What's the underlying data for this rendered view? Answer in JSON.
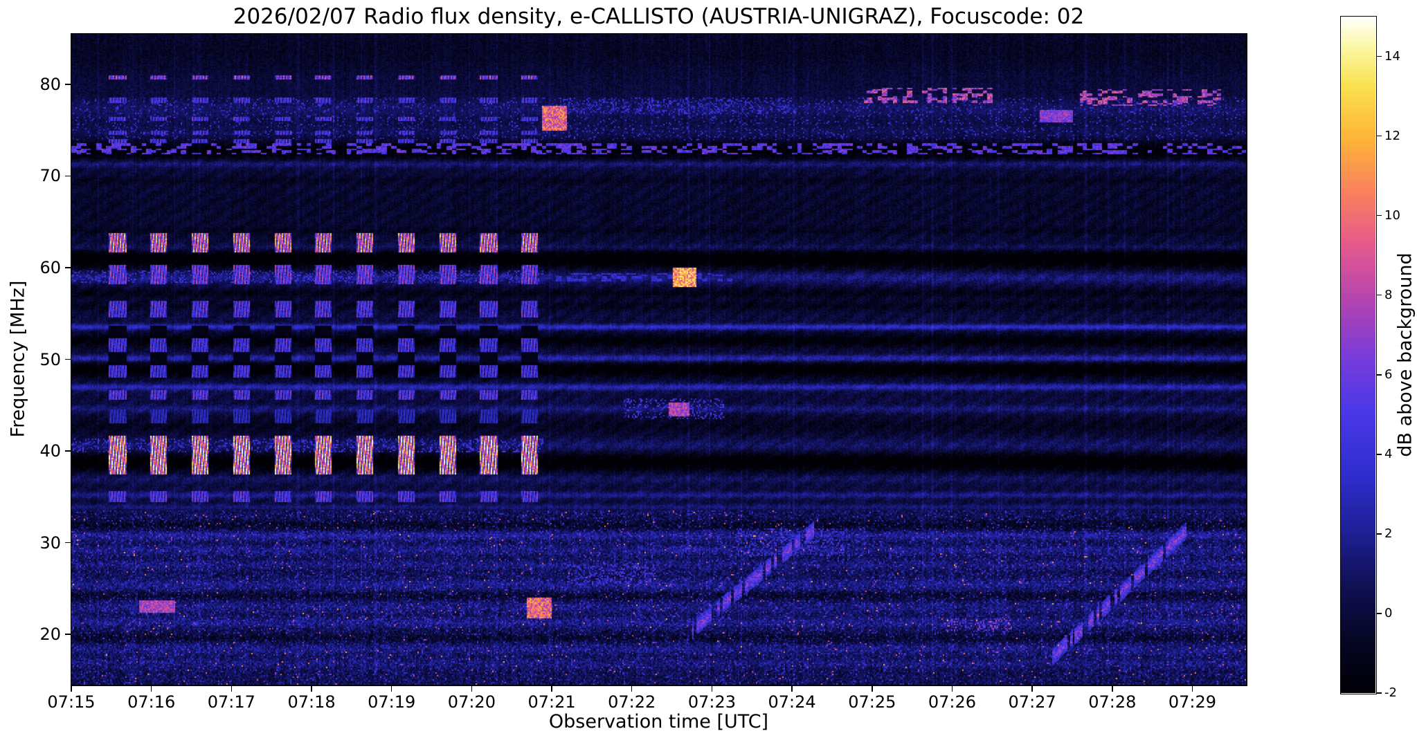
{
  "figure": {
    "title": "2026/02/07  Radio flux density, e-CALLISTO (AUSTRIA-UNIGRAZ), Focuscode: 02",
    "date": "2026/02/07",
    "instrument": "e-CALLISTO",
    "station": "AUSTRIA-UNIGRAZ",
    "focuscode": "02",
    "xlabel": "Observation time [UTC]",
    "ylabel": "Frequency [MHz]",
    "colorbar_label": "dB above background"
  },
  "chart_data": {
    "type": "heatmap",
    "title": "2026/02/07  Radio flux density, e-CALLISTO (AUSTRIA-UNIGRAZ), Focuscode: 02",
    "xlabel": "Observation time [UTC]",
    "ylabel": "Frequency [MHz]",
    "x_ticks": [
      "07:15",
      "07:16",
      "07:17",
      "07:18",
      "07:19",
      "07:20",
      "07:21",
      "07:22",
      "07:23",
      "07:24",
      "07:25",
      "07:26",
      "07:27",
      "07:28",
      "07:29"
    ],
    "x_start_utc": "07:15",
    "x_duration_minutes": 14.67,
    "y_ticks": [
      20,
      30,
      40,
      50,
      60,
      70,
      80
    ],
    "y_range_mhz": [
      14.5,
      85.5
    ],
    "grid": false,
    "colorbar": {
      "label": "dB above background",
      "ticks": [
        -2,
        0,
        2,
        4,
        6,
        8,
        10,
        12,
        14
      ],
      "vmin": -2,
      "vmax": 15,
      "position": "right"
    },
    "colormap_stops": [
      [
        0.0,
        0,
        0,
        4
      ],
      [
        0.08,
        6,
        6,
        38
      ],
      [
        0.16,
        16,
        16,
        84
      ],
      [
        0.24,
        30,
        32,
        150
      ],
      [
        0.33,
        48,
        46,
        208
      ],
      [
        0.42,
        76,
        56,
        232
      ],
      [
        0.5,
        122,
        60,
        216
      ],
      [
        0.58,
        178,
        68,
        176
      ],
      [
        0.66,
        228,
        88,
        142
      ],
      [
        0.74,
        250,
        128,
        94
      ],
      [
        0.82,
        253,
        180,
        56
      ],
      [
        0.9,
        250,
        226,
        80
      ],
      [
        0.96,
        252,
        249,
        172
      ],
      [
        1.0,
        255,
        255,
        255
      ]
    ],
    "background": {
      "base_db": 0,
      "noise_sigma_db": 1.5,
      "low_freq_noise_below_mhz": 33.5,
      "quiet_zone_mhz": [
        34,
        72
      ],
      "description": "Dark navy background near 0 dB with horizontal RFI band structure; persistent broadband noise and speckle below ~33 MHz; faint diagonal weave texture in the quiet 34-72 MHz zone after 07:21."
    },
    "spectral_bands": [
      [
        53.5,
        0.22,
        3.4
      ],
      [
        50.1,
        0.25,
        2.8
      ],
      [
        47.0,
        0.25,
        2.8
      ],
      [
        44.6,
        0.3,
        1.4
      ],
      [
        35.2,
        0.25,
        1.8
      ],
      [
        33.9,
        0.22,
        1.4
      ],
      [
        71.3,
        0.28,
        1.7
      ],
      [
        62.2,
        0.25,
        1.2
      ],
      [
        58.9,
        0.45,
        1.6
      ],
      [
        40.6,
        0.5,
        1.1
      ],
      [
        37.0,
        0.35,
        0.9
      ],
      [
        77.3,
        0.7,
        1.0
      ],
      [
        74.6,
        0.7,
        0.7
      ],
      [
        30.8,
        0.35,
        1.6
      ],
      [
        29.2,
        0.35,
        1.2
      ],
      [
        27.6,
        0.35,
        1.0
      ],
      [
        25.4,
        0.45,
        1.2
      ],
      [
        23.0,
        0.45,
        1.0
      ],
      [
        21.3,
        0.4,
        1.2
      ],
      [
        18.4,
        0.45,
        1.0
      ],
      [
        16.8,
        0.35,
        0.9
      ],
      [
        38.8,
        0.7,
        -2.6
      ],
      [
        48.9,
        0.6,
        -2.4
      ],
      [
        52.0,
        0.5,
        -2.0
      ],
      [
        55.8,
        0.4,
        -1.0
      ],
      [
        60.9,
        0.7,
        -2.6
      ],
      [
        57.2,
        0.4,
        -1.2
      ],
      [
        72.8,
        0.8,
        -2.0
      ],
      [
        66.5,
        2.5,
        -0.5
      ],
      [
        83.8,
        1.8,
        -0.7
      ],
      [
        42.8,
        0.7,
        -0.9
      ],
      [
        31.9,
        0.4,
        -1.2
      ],
      [
        24.2,
        0.35,
        -1.0
      ],
      [
        19.6,
        0.35,
        -1.0
      ],
      [
        64.0,
        0.3,
        -0.6
      ],
      [
        69.5,
        0.3,
        -0.6
      ]
    ],
    "pulse_train": {
      "description": "Regular broadband calibration-like pulses from ~07:15:35 to ~07:20:50, period ~31 s, each ~12 s wide with fine vertical striping, brightest at 37-42 MHz and 61-64 MHz (up to ~13 dB).",
      "start_min": 0.58,
      "period_min": 0.515,
      "count": 11,
      "width_min": 0.21,
      "bands": [
        [
          79.3,
          81.4,
          8.0,
          "patchy"
        ],
        [
          73.6,
          78.6,
          5.5,
          "patchy"
        ],
        [
          61.6,
          63.7,
          11.0,
          "solid"
        ],
        [
          58.2,
          60.2,
          7.0,
          "solid"
        ],
        [
          54.6,
          56.3,
          6.0,
          "solid"
        ],
        [
          48.0,
          53.6,
          5.5,
          "checker"
        ],
        [
          45.6,
          46.7,
          6.0,
          "solid"
        ],
        [
          42.9,
          44.6,
          3.5,
          "patchy"
        ],
        [
          37.4,
          41.7,
          12.5,
          "solid"
        ],
        [
          34.5,
          35.7,
          6.0,
          "solid"
        ]
      ]
    },
    "events": [
      {
        "t0": 0.0,
        "t1": 14.67,
        "f0": 72.4,
        "f1": 73.6,
        "db": 6.0,
        "type": "dashes"
      },
      {
        "t0": 0.0,
        "t1": 5.9,
        "f0": 58.3,
        "f1": 59.6,
        "db": 4.5,
        "type": "speckle"
      },
      {
        "t0": 0.0,
        "t1": 5.9,
        "f0": 39.9,
        "f1": 41.4,
        "db": 4.5,
        "type": "speckle"
      },
      {
        "t0": 0.85,
        "t1": 1.3,
        "f0": 22.3,
        "f1": 23.7,
        "db": 8.0,
        "type": "blob"
      },
      {
        "t0": 5.7,
        "t1": 6.0,
        "f0": 21.8,
        "f1": 24.0,
        "db": 10.0,
        "type": "blob"
      },
      {
        "t0": 5.88,
        "t1": 6.2,
        "f0": 75.0,
        "f1": 77.6,
        "db": 10.0,
        "type": "blob"
      },
      {
        "t0": 6.05,
        "t1": 8.25,
        "f0": 58.4,
        "f1": 59.4,
        "db": 4.0,
        "type": "dashes"
      },
      {
        "t0": 6.0,
        "t1": 9.0,
        "f0": 76.8,
        "f1": 78.5,
        "db": 4.0,
        "type": "speckle"
      },
      {
        "t0": 6.2,
        "t1": 7.3,
        "f0": 25.4,
        "f1": 27.6,
        "db": 5.0,
        "type": "speckle"
      },
      {
        "t0": 6.9,
        "t1": 8.15,
        "f0": 43.5,
        "f1": 45.8,
        "db": 5.0,
        "type": "speckle"
      },
      {
        "t0": 7.45,
        "t1": 7.72,
        "f0": 43.8,
        "f1": 45.3,
        "db": 8.0,
        "type": "blob"
      },
      {
        "t0": 7.5,
        "t1": 7.8,
        "f0": 57.9,
        "f1": 60.0,
        "db": 12.0,
        "type": "blob"
      },
      {
        "t0": 7.75,
        "t1": 9.35,
        "f0": 20.5,
        "f1": 32.0,
        "db": 7.0,
        "type": "drift"
      },
      {
        "t0": 8.3,
        "t1": 9.7,
        "f0": 28.5,
        "f1": 31.6,
        "db": 4.5,
        "type": "speckle"
      },
      {
        "t0": 9.9,
        "t1": 11.6,
        "f0": 77.9,
        "f1": 79.6,
        "db": 8.5,
        "type": "dashes"
      },
      {
        "t0": 10.9,
        "t1": 11.75,
        "f0": 20.3,
        "f1": 21.7,
        "db": 7.0,
        "type": "speckle"
      },
      {
        "t0": 12.1,
        "t1": 12.5,
        "f0": 75.9,
        "f1": 77.2,
        "db": 7.0,
        "type": "blob"
      },
      {
        "t0": 12.25,
        "t1": 13.95,
        "f0": 17.5,
        "f1": 31.5,
        "db": 7.0,
        "type": "drift"
      },
      {
        "t0": 12.6,
        "t1": 14.35,
        "f0": 77.6,
        "f1": 79.4,
        "db": 8.5,
        "type": "dashes"
      }
    ]
  }
}
